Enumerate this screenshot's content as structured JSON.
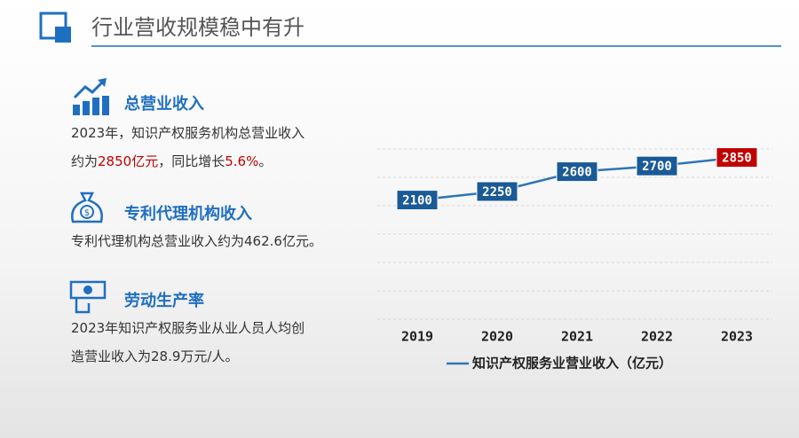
{
  "header": {
    "title": "行业营收规模稳中有升"
  },
  "sections": [
    {
      "heading": "总营业收入",
      "lines": [
        [
          {
            "text": "2023年，知识产权服务机构总营业收入",
            "color": "#333333"
          }
        ],
        [
          {
            "text": "约为",
            "color": "#333333"
          },
          {
            "text": "2850亿元",
            "color": "#c00000"
          },
          {
            "text": "，同比增长",
            "color": "#333333"
          },
          {
            "text": "5.6%",
            "color": "#c00000"
          },
          {
            "text": "。",
            "color": "#333333"
          }
        ]
      ]
    },
    {
      "heading": "专利代理机构收入",
      "lines": [
        [
          {
            "text": "专利代理机构总营业收入约为462.6亿元。",
            "color": "#333333"
          }
        ]
      ]
    },
    {
      "heading": "劳动生产率",
      "lines": [
        [
          {
            "text": "2023年知识产权服务业从业人员人均创",
            "color": "#333333"
          }
        ],
        [
          {
            "text": "造营业收入为28.9万元/人。",
            "color": "#333333"
          }
        ]
      ]
    }
  ],
  "chart_data": {
    "type": "line",
    "categories": [
      "2019",
      "2020",
      "2021",
      "2022",
      "2023"
    ],
    "series": [
      {
        "name": "知识产权服务业营业收入（亿元）",
        "color": "#2e75b6",
        "values": [
          2100,
          2250,
          2600,
          2700,
          2850
        ],
        "label_colors": [
          "#1a5a96",
          "#1a5a96",
          "#1a5a96",
          "#1a5a96",
          "#c00000"
        ]
      }
    ],
    "ylim": [
      0,
      3000
    ],
    "yticks": [
      0,
      500,
      1000,
      1500,
      2000,
      2500,
      3000
    ],
    "grid": true,
    "legend": "bottom"
  }
}
